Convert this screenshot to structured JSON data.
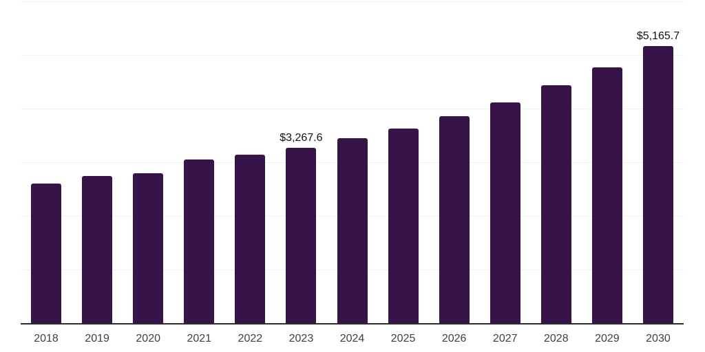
{
  "chart_data": {
    "type": "bar",
    "title": "",
    "xlabel": "",
    "ylabel": "",
    "categories": [
      "2018",
      "2019",
      "2020",
      "2021",
      "2022",
      "2023",
      "2024",
      "2025",
      "2026",
      "2027",
      "2028",
      "2029",
      "2030"
    ],
    "values": [
      2600,
      2750,
      2790,
      3050,
      3140,
      3267.6,
      3450,
      3630,
      3860,
      4120,
      4435,
      4775,
      5165.7
    ],
    "point_labels": [
      "",
      "",
      "",
      "",
      "",
      "$3,267.6",
      "",
      "",
      "",
      "",
      "",
      "",
      "$5,165.7"
    ],
    "ylim": [
      0,
      6000
    ],
    "grid": true,
    "gridline_step": 1000,
    "legend": "none",
    "colors": {
      "bar_fill": "#361349",
      "background": "#ffffff",
      "gridline": "#f0f0f0",
      "axis_line": "#2b2b2b",
      "tick_label": "#3f3f3f",
      "data_label": "#111111"
    }
  }
}
